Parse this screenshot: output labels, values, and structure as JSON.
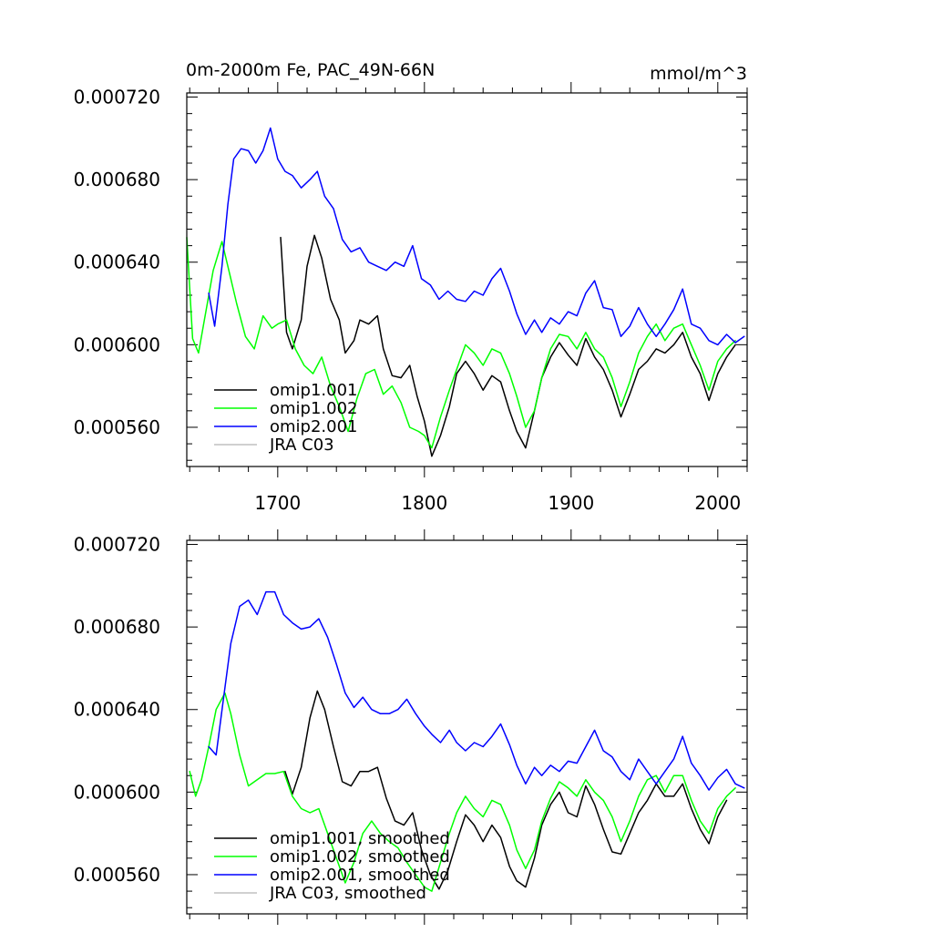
{
  "page": {
    "title": "0m-2000m Fe, PAC_49N-66N",
    "units": "mmol/m^3"
  },
  "chart_data": [
    {
      "type": "line",
      "title": "0m-2000m Fe, PAC_49N-66N",
      "units_label": "mmol/m^3",
      "xlim": [
        1638,
        2020
      ],
      "ylim": [
        0.000541,
        0.000722
      ],
      "xticks": [
        1700,
        1800,
        1900,
        2000
      ],
      "xtick_labels": [
        "1700",
        "1800",
        "1900",
        "2000"
      ],
      "yticks": [
        0.00056,
        0.0006,
        0.00064,
        0.00068,
        0.00072
      ],
      "ytick_labels": [
        "0.000560",
        "0.000600",
        "0.000640",
        "0.000680",
        "0.000720"
      ],
      "legend_position": "bottom-left",
      "series": [
        {
          "name": "omip1.001",
          "color": "#000000",
          "x": [
            1702,
            1706,
            1710,
            1716,
            1720,
            1725,
            1730,
            1736,
            1742,
            1746,
            1752,
            1756,
            1762,
            1768,
            1772,
            1778,
            1784,
            1790,
            1795,
            1800,
            1805,
            1811,
            1817,
            1822,
            1828,
            1834,
            1840,
            1846,
            1852,
            1858,
            1863,
            1869,
            1875,
            1880,
            1886,
            1892,
            1898,
            1904,
            1910,
            1916,
            1922,
            1928,
            1934,
            1940,
            1946,
            1952,
            1958,
            1964,
            1970,
            1976,
            1982,
            1988,
            1994,
            2000,
            2006,
            2012
          ],
          "y": [
            0.000652,
            0.000606,
            0.000598,
            0.000612,
            0.000638,
            0.000653,
            0.000642,
            0.000622,
            0.000612,
            0.000596,
            0.000602,
            0.000612,
            0.00061,
            0.000614,
            0.000598,
            0.000585,
            0.000584,
            0.00059,
            0.000575,
            0.000563,
            0.000546,
            0.000556,
            0.00057,
            0.000586,
            0.000592,
            0.000586,
            0.000578,
            0.000585,
            0.000582,
            0.000568,
            0.000558,
            0.00055,
            0.000568,
            0.000584,
            0.000594,
            0.000601,
            0.000595,
            0.00059,
            0.000603,
            0.000594,
            0.000588,
            0.000578,
            0.000565,
            0.000576,
            0.000588,
            0.000592,
            0.000598,
            0.000596,
            0.0006,
            0.000606,
            0.000594,
            0.000586,
            0.000573,
            0.000586,
            0.000594,
            0.0006
          ]
        },
        {
          "name": "omip1.002",
          "color": "#00ff00",
          "x": [
            1638,
            1642,
            1646,
            1650,
            1656,
            1662,
            1666,
            1672,
            1678,
            1684,
            1690,
            1696,
            1700,
            1706,
            1712,
            1718,
            1724,
            1730,
            1736,
            1742,
            1748,
            1754,
            1760,
            1766,
            1772,
            1778,
            1784,
            1790,
            1796,
            1800,
            1805,
            1811,
            1817,
            1822,
            1828,
            1834,
            1840,
            1846,
            1852,
            1858,
            1863,
            1869,
            1875,
            1880,
            1886,
            1892,
            1898,
            1904,
            1910,
            1916,
            1922,
            1928,
            1934,
            1940,
            1946,
            1952,
            1958,
            1964,
            1970,
            1976,
            1982,
            1988,
            1994,
            2000,
            2006,
            2012
          ],
          "y": [
            0.000652,
            0.000603,
            0.000596,
            0.000612,
            0.000636,
            0.00065,
            0.000638,
            0.00062,
            0.000604,
            0.000598,
            0.000614,
            0.000608,
            0.00061,
            0.000612,
            0.000598,
            0.00059,
            0.000586,
            0.000594,
            0.00058,
            0.00057,
            0.000558,
            0.000574,
            0.000586,
            0.000588,
            0.000576,
            0.00058,
            0.000572,
            0.00056,
            0.000558,
            0.000556,
            0.00055,
            0.000565,
            0.000578,
            0.000588,
            0.0006,
            0.000596,
            0.00059,
            0.000598,
            0.000596,
            0.000586,
            0.000575,
            0.00056,
            0.000568,
            0.000584,
            0.000598,
            0.000605,
            0.000604,
            0.000598,
            0.000606,
            0.000598,
            0.000594,
            0.000584,
            0.00057,
            0.000582,
            0.000596,
            0.000604,
            0.00061,
            0.000602,
            0.000608,
            0.00061,
            0.0006,
            0.00059,
            0.000578,
            0.000592,
            0.000598,
            0.000602
          ]
        },
        {
          "name": "omip2.001",
          "color": "#0000ff",
          "x": [
            1653,
            1657,
            1662,
            1666,
            1670,
            1675,
            1680,
            1685,
            1690,
            1695,
            1700,
            1705,
            1710,
            1716,
            1722,
            1727,
            1732,
            1738,
            1744,
            1750,
            1756,
            1762,
            1768,
            1774,
            1780,
            1786,
            1792,
            1798,
            1804,
            1810,
            1816,
            1822,
            1828,
            1834,
            1840,
            1846,
            1852,
            1858,
            1863,
            1869,
            1875,
            1880,
            1886,
            1892,
            1898,
            1904,
            1910,
            1916,
            1922,
            1928,
            1934,
            1940,
            1946,
            1952,
            1958,
            1964,
            1970,
            1976,
            1982,
            1988,
            1994,
            2000,
            2006,
            2012,
            2018
          ],
          "y": [
            0.000625,
            0.000609,
            0.000638,
            0.000668,
            0.00069,
            0.000695,
            0.000694,
            0.000688,
            0.000694,
            0.000705,
            0.00069,
            0.000684,
            0.000682,
            0.000676,
            0.00068,
            0.000684,
            0.000672,
            0.000666,
            0.000651,
            0.000645,
            0.000647,
            0.00064,
            0.000638,
            0.000636,
            0.00064,
            0.000638,
            0.000648,
            0.000632,
            0.000629,
            0.000622,
            0.000626,
            0.000622,
            0.000621,
            0.000626,
            0.000624,
            0.000632,
            0.000637,
            0.000626,
            0.000615,
            0.000605,
            0.000612,
            0.000606,
            0.000613,
            0.00061,
            0.000616,
            0.000614,
            0.000625,
            0.000631,
            0.000618,
            0.000617,
            0.000604,
            0.000609,
            0.000618,
            0.00061,
            0.000604,
            0.00061,
            0.000617,
            0.000627,
            0.00061,
            0.000608,
            0.000602,
            0.0006,
            0.000605,
            0.000601,
            0.000604
          ]
        },
        {
          "name": "JRA C03",
          "color": "#c0c0c0",
          "x": [],
          "y": []
        }
      ]
    },
    {
      "type": "line",
      "title": "",
      "xlim": [
        1638,
        2020
      ],
      "ylim": [
        0.000541,
        0.000722
      ],
      "xticks": [
        1700,
        1800,
        1900,
        2000
      ],
      "xtick_labels": [],
      "yticks": [
        0.00056,
        0.0006,
        0.00064,
        0.00068,
        0.00072
      ],
      "ytick_labels": [
        "0.000560",
        "0.000600",
        "0.000640",
        "0.000680",
        "0.000720"
      ],
      "legend_position": "bottom-left",
      "series": [
        {
          "name": "omip1.001, smoothed",
          "color": "#000000",
          "x": [
            1705,
            1710,
            1716,
            1722,
            1727,
            1732,
            1738,
            1744,
            1750,
            1756,
            1762,
            1768,
            1774,
            1780,
            1786,
            1792,
            1798,
            1804,
            1810,
            1816,
            1822,
            1828,
            1834,
            1840,
            1846,
            1852,
            1858,
            1863,
            1869,
            1875,
            1880,
            1886,
            1892,
            1898,
            1904,
            1910,
            1916,
            1922,
            1928,
            1934,
            1940,
            1946,
            1952,
            1958,
            1964,
            1970,
            1976,
            1982,
            1988,
            1994,
            2000,
            2006
          ],
          "y": [
            0.00061,
            0.000599,
            0.000612,
            0.000636,
            0.000649,
            0.00064,
            0.000622,
            0.000605,
            0.000603,
            0.00061,
            0.00061,
            0.000612,
            0.000597,
            0.000586,
            0.000584,
            0.00059,
            0.000572,
            0.00056,
            0.000553,
            0.000562,
            0.000576,
            0.000589,
            0.000584,
            0.000576,
            0.000584,
            0.000578,
            0.000564,
            0.000557,
            0.000554,
            0.000568,
            0.000584,
            0.000594,
            0.0006,
            0.00059,
            0.000588,
            0.000603,
            0.000594,
            0.000582,
            0.000571,
            0.00057,
            0.00058,
            0.00059,
            0.000596,
            0.000604,
            0.000598,
            0.000598,
            0.000604,
            0.000592,
            0.000582,
            0.000575,
            0.000588,
            0.000596
          ]
        },
        {
          "name": "omip1.002, smoothed",
          "color": "#00ff00",
          "x": [
            1640,
            1644,
            1648,
            1653,
            1658,
            1664,
            1668,
            1674,
            1680,
            1686,
            1692,
            1698,
            1704,
            1710,
            1716,
            1722,
            1728,
            1734,
            1740,
            1746,
            1752,
            1758,
            1764,
            1770,
            1776,
            1782,
            1788,
            1794,
            1800,
            1805,
            1811,
            1817,
            1822,
            1828,
            1834,
            1840,
            1846,
            1852,
            1858,
            1863,
            1869,
            1875,
            1880,
            1886,
            1892,
            1898,
            1904,
            1910,
            1916,
            1922,
            1928,
            1934,
            1940,
            1946,
            1952,
            1958,
            1964,
            1970,
            1976,
            1982,
            1988,
            1994,
            2000,
            2006,
            2012
          ],
          "y": [
            0.00061,
            0.000598,
            0.000606,
            0.000622,
            0.00064,
            0.000648,
            0.000638,
            0.000618,
            0.000603,
            0.000606,
            0.000609,
            0.000609,
            0.00061,
            0.000598,
            0.000592,
            0.00059,
            0.000592,
            0.00058,
            0.000568,
            0.000556,
            0.000566,
            0.00058,
            0.000586,
            0.00058,
            0.000576,
            0.000573,
            0.000566,
            0.00056,
            0.000554,
            0.000552,
            0.000566,
            0.00058,
            0.00059,
            0.000598,
            0.000592,
            0.000588,
            0.000596,
            0.000594,
            0.000584,
            0.000572,
            0.000563,
            0.000572,
            0.000586,
            0.000597,
            0.000605,
            0.000602,
            0.000598,
            0.000606,
            0.0006,
            0.000596,
            0.000588,
            0.000576,
            0.000586,
            0.000598,
            0.000606,
            0.000608,
            0.0006,
            0.000608,
            0.000608,
            0.000596,
            0.000586,
            0.00058,
            0.000592,
            0.000598,
            0.000602
          ]
        },
        {
          "name": "omip2.001, smoothed",
          "color": "#0000ff",
          "x": [
            1653,
            1658,
            1663,
            1668,
            1674,
            1680,
            1686,
            1692,
            1698,
            1704,
            1710,
            1716,
            1722,
            1728,
            1734,
            1740,
            1746,
            1752,
            1758,
            1764,
            1770,
            1776,
            1782,
            1788,
            1794,
            1800,
            1805,
            1811,
            1817,
            1822,
            1828,
            1834,
            1840,
            1846,
            1852,
            1858,
            1863,
            1869,
            1875,
            1880,
            1886,
            1892,
            1898,
            1904,
            1910,
            1916,
            1922,
            1928,
            1934,
            1940,
            1946,
            1952,
            1958,
            1964,
            1970,
            1976,
            1982,
            1988,
            1994,
            2000,
            2006,
            2012,
            2018
          ],
          "y": [
            0.000622,
            0.000618,
            0.000645,
            0.000672,
            0.00069,
            0.000693,
            0.000686,
            0.000697,
            0.000697,
            0.000686,
            0.000682,
            0.000679,
            0.00068,
            0.000684,
            0.000675,
            0.000662,
            0.000648,
            0.000641,
            0.000646,
            0.00064,
            0.000638,
            0.000638,
            0.00064,
            0.000645,
            0.000638,
            0.000632,
            0.000628,
            0.000624,
            0.00063,
            0.000624,
            0.00062,
            0.000624,
            0.000622,
            0.000627,
            0.000633,
            0.000623,
            0.000613,
            0.000604,
            0.000612,
            0.000608,
            0.000613,
            0.00061,
            0.000615,
            0.000614,
            0.000622,
            0.00063,
            0.00062,
            0.000617,
            0.00061,
            0.000606,
            0.000616,
            0.00061,
            0.000604,
            0.00061,
            0.000616,
            0.000627,
            0.000614,
            0.000608,
            0.000601,
            0.000607,
            0.000611,
            0.000604,
            0.000602
          ]
        },
        {
          "name": "JRA C03, smoothed",
          "color": "#c0c0c0",
          "x": [],
          "y": []
        }
      ]
    }
  ]
}
